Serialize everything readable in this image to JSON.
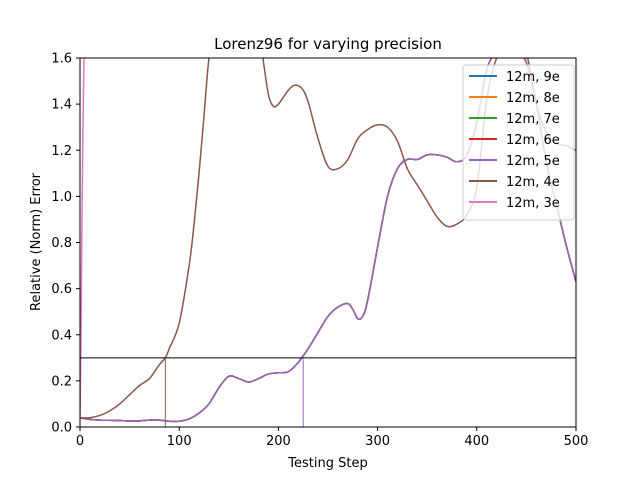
{
  "chart_data": {
    "type": "line",
    "title": "Lorenz96 for varying precision",
    "xlabel": "Testing Step",
    "ylabel": "Relative (Norm) Error",
    "xlim": [
      0,
      500
    ],
    "ylim": [
      0.0,
      1.6
    ],
    "xticks": [
      0,
      100,
      200,
      300,
      400,
      500
    ],
    "yticks": [
      0.0,
      0.2,
      0.4,
      0.6,
      0.8,
      1.0,
      1.2,
      1.4,
      1.6
    ],
    "grid": false,
    "legend_position": "top-right",
    "threshold": 0.3,
    "crossings": [
      {
        "x": 86,
        "series": "12m, 4e"
      },
      {
        "x": 225,
        "series": "12m, 5e"
      }
    ],
    "series": [
      {
        "name": "12m, 9e",
        "color": "#1f77b4",
        "curve": "main"
      },
      {
        "name": "12m, 8e",
        "color": "#ff7f0e",
        "curve": "main"
      },
      {
        "name": "12m, 7e",
        "color": "#2ca02c",
        "curve": "main"
      },
      {
        "name": "12m, 6e",
        "color": "#d62728",
        "curve": "main"
      },
      {
        "name": "12m, 5e",
        "color": "#9467bd",
        "curve": "main"
      },
      {
        "name": "12m, 4e",
        "color": "#8c564b",
        "curve": "fourE"
      },
      {
        "name": "12m, 3e",
        "color": "#e377c2",
        "curve": "threeE"
      }
    ],
    "curves": {
      "main": {
        "x": [
          0,
          10,
          20,
          30,
          40,
          50,
          60,
          70,
          80,
          90,
          100,
          110,
          120,
          130,
          140,
          150,
          160,
          170,
          180,
          190,
          200,
          210,
          220,
          230,
          240,
          250,
          260,
          270,
          275,
          280,
          285,
          290,
          300,
          310,
          320,
          330,
          340,
          350,
          360,
          370,
          380,
          390,
          400,
          410,
          420,
          430,
          440,
          450,
          460,
          470,
          480,
          490,
          500
        ],
        "y": [
          0.04,
          0.033,
          0.03,
          0.029,
          0.028,
          0.026,
          0.026,
          0.03,
          0.03,
          0.025,
          0.025,
          0.035,
          0.06,
          0.1,
          0.17,
          0.22,
          0.21,
          0.195,
          0.21,
          0.23,
          0.235,
          0.24,
          0.28,
          0.34,
          0.41,
          0.48,
          0.52,
          0.535,
          0.51,
          0.47,
          0.48,
          0.55,
          0.78,
          1.0,
          1.12,
          1.16,
          1.16,
          1.18,
          1.18,
          1.17,
          1.15,
          1.18,
          1.32,
          1.55,
          1.62,
          1.62,
          1.62,
          1.58,
          1.4,
          1.15,
          0.97,
          0.79,
          0.63
        ]
      },
      "fourE": {
        "x": [
          0,
          10,
          20,
          30,
          40,
          50,
          60,
          70,
          80,
          86,
          90,
          100,
          110,
          115,
          120,
          125,
          130,
          135,
          180,
          185,
          190,
          195,
          200,
          205,
          210,
          215,
          220,
          225,
          230,
          240,
          250,
          260,
          270,
          280,
          290,
          300,
          310,
          320,
          330,
          340,
          350,
          360,
          370,
          380,
          390,
          400,
          410,
          420,
          430,
          440,
          450,
          460,
          470,
          480,
          490,
          500
        ],
        "y": [
          0.04,
          0.04,
          0.05,
          0.07,
          0.1,
          0.14,
          0.18,
          0.21,
          0.27,
          0.3,
          0.34,
          0.45,
          0.7,
          0.88,
          1.1,
          1.35,
          1.6,
          1.7,
          1.7,
          1.58,
          1.44,
          1.39,
          1.4,
          1.43,
          1.46,
          1.48,
          1.48,
          1.46,
          1.41,
          1.25,
          1.13,
          1.12,
          1.16,
          1.25,
          1.29,
          1.31,
          1.3,
          1.24,
          1.12,
          1.05,
          0.98,
          0.91,
          0.87,
          0.88,
          0.92,
          1.04,
          1.42,
          1.6,
          1.64,
          1.64,
          1.62,
          1.4,
          1.28,
          1.23,
          1.22,
          1.2
        ]
      },
      "threeE": {
        "x": [
          0,
          1,
          2,
          3,
          4,
          5
        ],
        "y": [
          0.04,
          0.4,
          0.9,
          1.3,
          1.6,
          1.8
        ]
      }
    }
  }
}
